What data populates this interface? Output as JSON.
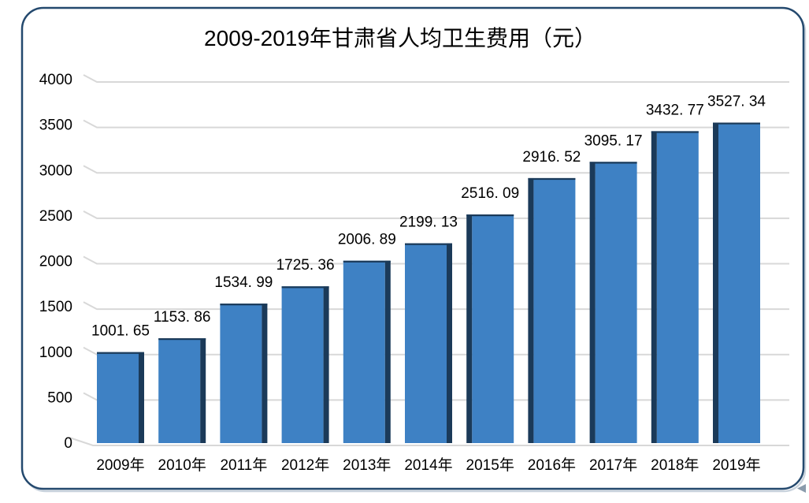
{
  "window": {
    "border_color": "#24496E",
    "border_shadow_color": "#C9D3DD",
    "background_color": "#FFFFFF"
  },
  "chart_data": {
    "type": "bar",
    "title": "2009-2019年甘肃省人均卫生费用（元）",
    "categories": [
      "2009年",
      "2010年",
      "2011年",
      "2012年",
      "2013年",
      "2014年",
      "2015年",
      "2016年",
      "2017年",
      "2018年",
      "2019年"
    ],
    "values": [
      1001.65,
      1153.86,
      1534.99,
      1725.36,
      2006.89,
      2199.13,
      2516.09,
      2916.52,
      3095.17,
      3432.77,
      3527.34
    ],
    "data_labels": [
      "1001. 65",
      "1153. 86",
      "1534. 99",
      "1725. 36",
      "2006. 89",
      "2199. 13",
      "2516. 09",
      "2916. 52",
      "3095. 17",
      "3432. 77",
      "3527. 34"
    ],
    "ytick_labels": [
      "0",
      "500",
      "1000",
      "1500",
      "2000",
      "2500",
      "3000",
      "3500",
      "4000"
    ],
    "ylim": [
      0,
      4000
    ],
    "ytick_interval": 500,
    "grid": true,
    "legend": "none",
    "bar_color": "#3E81C4",
    "bar_side_color": "#1B3A59",
    "gridline_color": "#D8D8D8",
    "text_color": "#000000"
  },
  "decor": {
    "corner_arrow_icon": "left-triangle",
    "corner_arrow_color": "#8A9BAC"
  }
}
